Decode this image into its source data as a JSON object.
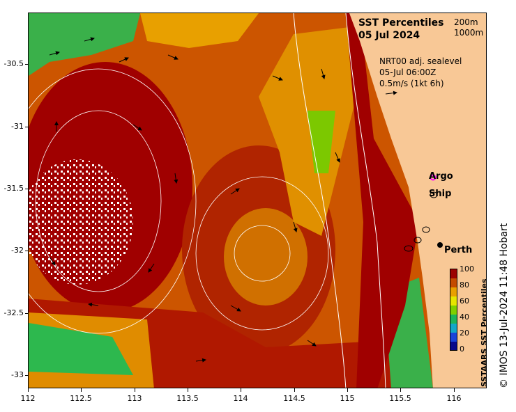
{
  "title": {
    "line1": "SST Percentiles",
    "line2": "05 Jul 2024"
  },
  "contour_legend": [
    "200m",
    "1000m"
  ],
  "info": {
    "line1": "NRT00 adj. sealevel",
    "line2": "05-Jul 06:00Z",
    "line3": "0.5m/s (1kt 6h)"
  },
  "legend": {
    "argo": "Argo",
    "ship": "Ship",
    "argo_color": "#ff00ff"
  },
  "place": {
    "perth": "Perth"
  },
  "x_axis": {
    "ticks": [
      "112",
      "112.5",
      "113",
      "113.5",
      "114",
      "114.5",
      "115",
      "115.5",
      "116"
    ]
  },
  "y_axis": {
    "ticks": [
      "-30.5",
      "-31",
      "-31.5",
      "-32",
      "-32.5",
      "-33"
    ]
  },
  "colorbar": {
    "title": "SSTAARS SST Percentiles",
    "labels": [
      "100",
      "80",
      "60",
      "40",
      "20",
      "0"
    ],
    "colors": [
      "#9c0000",
      "#c44b00",
      "#e8a000",
      "#e6e600",
      "#7fd000",
      "#1cb45a",
      "#12a7c8",
      "#1a44d8",
      "#0a0a8a"
    ]
  },
  "credit": "© IMOS 13-Jul-2024 11:48 Hobart",
  "colors": {
    "land": "#f8c896",
    "warm": "#a00000",
    "mid": "#cc5500",
    "orange": "#e08c00",
    "green": "#2db84e"
  }
}
